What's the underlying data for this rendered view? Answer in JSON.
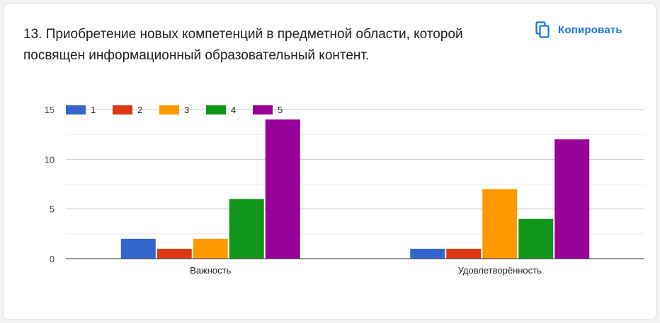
{
  "question": {
    "line1": "13. Приобретение новых компетенций в предметной области, которой",
    "line2": "посвящен информационный образовательный контент."
  },
  "copy_button": {
    "label": "Копировать",
    "icon": "copy-icon"
  },
  "colors": {
    "accent": "#1a73e8",
    "series": [
      "#3366cc",
      "#dc3912",
      "#ff9900",
      "#109618",
      "#990099"
    ]
  },
  "chart_data": {
    "type": "bar",
    "categories": [
      "Важность",
      "Удовлетворённость"
    ],
    "series": [
      {
        "name": "1",
        "values": [
          2,
          1
        ]
      },
      {
        "name": "2",
        "values": [
          1,
          1
        ]
      },
      {
        "name": "3",
        "values": [
          2,
          7
        ]
      },
      {
        "name": "4",
        "values": [
          6,
          4
        ]
      },
      {
        "name": "5",
        "values": [
          14,
          12
        ]
      }
    ],
    "ylim": [
      0,
      15
    ],
    "yticks": [
      0,
      5,
      10,
      15
    ],
    "grid": true,
    "legend": "top-left"
  }
}
